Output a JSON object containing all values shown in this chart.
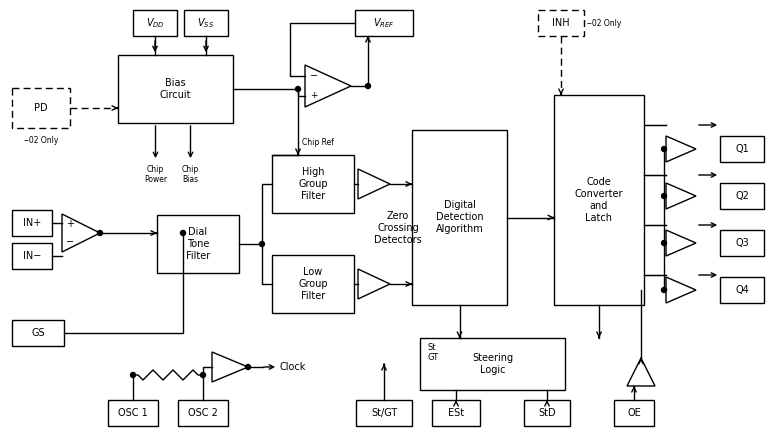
{
  "bg": "#ffffff",
  "lc": "#000000",
  "gc": "#999999",
  "fs": 7.0,
  "lw": 1.0,
  "blocks": {
    "vdd": [
      133,
      10,
      44,
      26
    ],
    "vss": [
      184,
      10,
      44,
      26
    ],
    "bias": [
      118,
      55,
      115,
      68
    ],
    "pd": [
      12,
      88,
      58,
      40
    ],
    "high_filt": [
      272,
      155,
      82,
      58
    ],
    "low_filt": [
      272,
      255,
      82,
      58
    ],
    "digital": [
      412,
      130,
      95,
      175
    ],
    "code_conv": [
      554,
      95,
      90,
      210
    ],
    "dial": [
      157,
      215,
      82,
      58
    ],
    "inp": [
      12,
      210,
      40,
      26
    ],
    "inm": [
      12,
      243,
      40,
      26
    ],
    "gs": [
      12,
      320,
      52,
      26
    ],
    "steering": [
      420,
      338,
      145,
      52
    ],
    "stgt": [
      356,
      400,
      56,
      26
    ],
    "est": [
      432,
      400,
      48,
      26
    ],
    "std": [
      524,
      400,
      46,
      26
    ],
    "oe": [
      614,
      400,
      40,
      26
    ],
    "osc1": [
      108,
      400,
      50,
      26
    ],
    "osc2": [
      178,
      400,
      50,
      26
    ],
    "vref": [
      355,
      10,
      58,
      26
    ],
    "inh": [
      538,
      10,
      46,
      26
    ],
    "q1": [
      720,
      136,
      44,
      26
    ],
    "q2": [
      720,
      183,
      44,
      26
    ],
    "q3": [
      720,
      230,
      44,
      26
    ],
    "q4": [
      720,
      277,
      44,
      26
    ]
  }
}
